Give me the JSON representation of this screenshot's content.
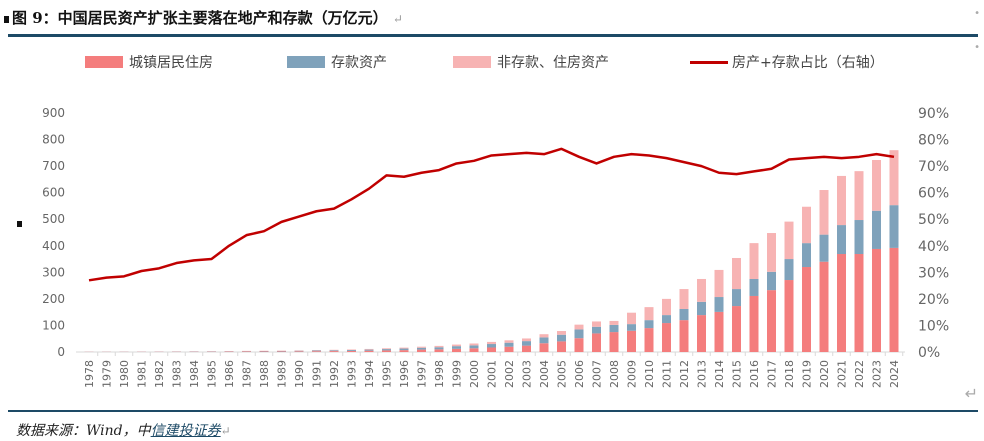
{
  "header": {
    "title": "图 9：中国居民资产扩张主要落在地产和存款（万亿元）",
    "return_mark": "↵"
  },
  "footer": {
    "source_prefix": "数据来源：Wind，中",
    "source_link": "信建投证券",
    "return_mark": "↵"
  },
  "colors": {
    "housing": "#f47d7d",
    "deposit": "#7fa2bb",
    "other": "#f7b3b3",
    "ratio": "#c00000",
    "rule": "#1d4a66"
  },
  "chart_data": {
    "type": "bar",
    "title": "中国居民资产扩张主要落在地产和存款（万亿元）",
    "legend": [
      "城镇居民住房",
      "存款资产",
      "非存款、住房资产",
      "房产+存款占比（右轴）"
    ],
    "legend_placement": "top",
    "categories": [
      "1978",
      "1979",
      "1980",
      "1981",
      "1982",
      "1983",
      "1984",
      "1985",
      "1986",
      "1987",
      "1988",
      "1989",
      "1990",
      "1991",
      "1992",
      "1993",
      "1994",
      "1995",
      "1996",
      "1997",
      "1998",
      "1999",
      "2000",
      "2001",
      "2002",
      "2003",
      "2004",
      "2005",
      "2006",
      "2007",
      "2008",
      "2009",
      "2010",
      "2011",
      "2012",
      "2013",
      "2014",
      "2015",
      "2016",
      "2017",
      "2018",
      "2019",
      "2020",
      "2021",
      "2022",
      "2023",
      "2024"
    ],
    "series": [
      {
        "name": "城镇居民住房",
        "type": "bar",
        "values": [
          0.5,
          0.6,
          0.7,
          0.8,
          0.9,
          1,
          1.1,
          1.2,
          1.5,
          1.8,
          2,
          2.3,
          2.6,
          3,
          3.5,
          4,
          5,
          6,
          7,
          9,
          10,
          12,
          14,
          17,
          20,
          24,
          33,
          40,
          52,
          70,
          75,
          80,
          90,
          109,
          120,
          139,
          151,
          173,
          211,
          233,
          271,
          320,
          340,
          369,
          369,
          388,
          392
        ]
      },
      {
        "name": "存款资产",
        "type": "bar",
        "values": [
          0.3,
          0.4,
          0.5,
          0.5,
          0.6,
          0.7,
          0.8,
          1,
          1.2,
          1.4,
          1.6,
          1.8,
          2.2,
          2.6,
          3,
          3.5,
          4,
          5,
          6,
          7,
          8,
          10,
          11,
          13,
          15,
          17,
          22,
          25,
          33,
          25,
          27,
          25,
          30,
          30,
          42,
          50,
          56,
          64,
          64,
          69,
          79,
          90,
          102,
          109,
          128,
          144,
          161
        ]
      },
      {
        "name": "非存款、住房资产",
        "type": "bar",
        "values": [
          0.3,
          0.3,
          0.4,
          0.4,
          0.5,
          0.5,
          0.6,
          0.7,
          0.8,
          1,
          1.1,
          1.2,
          1.4,
          1.6,
          1.8,
          2,
          2.5,
          3,
          3.5,
          4,
          5,
          6,
          7,
          8,
          9,
          10,
          12,
          14,
          18,
          20,
          15,
          43,
          49,
          61,
          75,
          86,
          102,
          117,
          135,
          146,
          141,
          137,
          168,
          185,
          184,
          191,
          207
        ]
      },
      {
        "name": "房产+存款占比（右轴）",
        "type": "line",
        "axis": "right",
        "values": [
          27,
          28,
          28.5,
          30.5,
          31.5,
          33.5,
          34.5,
          35,
          40,
          44,
          45.5,
          49,
          51,
          53,
          54,
          57.5,
          61.5,
          66.5,
          66,
          67.5,
          68.5,
          71,
          72,
          74,
          74.5,
          75,
          74.5,
          76.5,
          73.5,
          71,
          73.5,
          74.5,
          74,
          73,
          71.5,
          70,
          67.5,
          67,
          68,
          69,
          72.5,
          73,
          73.5,
          73,
          73.5,
          74.5,
          73.5
        ]
      }
    ],
    "ylim": [
      0,
      900
    ],
    "yticks": [
      "0",
      "100",
      "200",
      "300",
      "400",
      "500",
      "600",
      "700",
      "800",
      "900"
    ],
    "y2lim": [
      0,
      90
    ],
    "y2ticks": [
      "0%",
      "10%",
      "20%",
      "30%",
      "40%",
      "50%",
      "60%",
      "70%",
      "80%",
      "90%"
    ],
    "xlabel": "",
    "ylabel": "",
    "grid": false
  }
}
